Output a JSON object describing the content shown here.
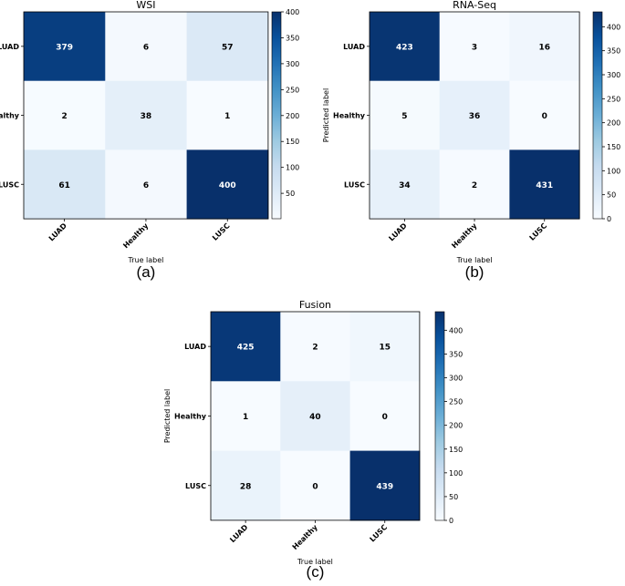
{
  "chart_data": [
    {
      "type": "heatmap",
      "title": "WSI",
      "panel_label": "(a)",
      "xlabel": "True label",
      "ylabel": "Predicted label",
      "x_categories": [
        "LUAD",
        "Healthy",
        "LUSC"
      ],
      "y_categories": [
        "LUAD",
        "Healthy",
        "LUSC"
      ],
      "values": [
        [
          379,
          6,
          57
        ],
        [
          2,
          38,
          1
        ],
        [
          61,
          6,
          400
        ]
      ],
      "colorbar_range": [
        1,
        400
      ],
      "colorbar_ticks": [
        50,
        100,
        150,
        200,
        250,
        300,
        350,
        400
      ],
      "colormap": "Blues"
    },
    {
      "type": "heatmap",
      "title": "RNA-Seq",
      "panel_label": "(b)",
      "xlabel": "True label",
      "ylabel": "Predicted label",
      "x_categories": [
        "LUAD",
        "Healthy",
        "LUSC"
      ],
      "y_categories": [
        "LUAD",
        "Healthy",
        "LUSC"
      ],
      "values": [
        [
          423,
          3,
          16
        ],
        [
          5,
          36,
          0
        ],
        [
          34,
          2,
          431
        ]
      ],
      "colorbar_range": [
        0,
        431
      ],
      "colorbar_ticks": [
        0,
        50,
        100,
        150,
        200,
        250,
        300,
        350,
        400
      ],
      "colormap": "Blues"
    },
    {
      "type": "heatmap",
      "title": "Fusion",
      "panel_label": "(c)",
      "xlabel": "True label",
      "ylabel": "Predicted label",
      "x_categories": [
        "LUAD",
        "Healthy",
        "LUSC"
      ],
      "y_categories": [
        "LUAD",
        "Healthy",
        "LUSC"
      ],
      "values": [
        [
          425,
          2,
          15
        ],
        [
          1,
          40,
          0
        ],
        [
          28,
          0,
          439
        ]
      ],
      "colorbar_range": [
        0,
        439
      ],
      "colorbar_ticks": [
        0,
        50,
        100,
        150,
        200,
        250,
        300,
        350,
        400
      ],
      "colormap": "Blues"
    }
  ]
}
